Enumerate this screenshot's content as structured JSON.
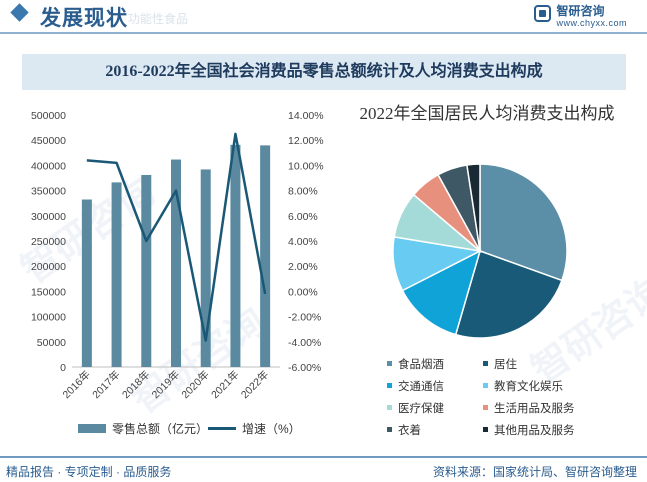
{
  "header": {
    "section_title": "发展现状",
    "faded_text": "功能性食品",
    "logo_name": "智研咨询",
    "logo_url": "www.chyxx.com"
  },
  "banner_title": "2016-2022年全国社会消费品零售总额统计及人均消费支出构成",
  "watermark_text": "智研咨询",
  "footer": {
    "left": "精品报告 · 专项定制 · 品质服务",
    "right": "资料来源：国家统计局、智研咨询整理"
  },
  "colors": {
    "bar": "#5b8aa0",
    "line": "#1a5876",
    "brand": "#2a5d8f"
  },
  "chart_data": [
    {
      "type": "bar",
      "categories": [
        "2016年",
        "2017年",
        "2018年",
        "2019年",
        "2020年",
        "2021年",
        "2022年"
      ],
      "series": [
        {
          "name": "零售总额（亿元）",
          "type": "bar",
          "axis": "left",
          "values": [
            332316,
            366262,
            380987,
            411649,
            391981,
            440823,
            439733
          ]
        },
        {
          "name": "增速（%）",
          "type": "line",
          "axis": "right",
          "values": [
            10.4,
            10.2,
            4.0,
            8.0,
            -3.9,
            12.5,
            -0.2
          ]
        }
      ],
      "left_axis": {
        "ylim": [
          0,
          500000
        ],
        "ticks": [
          "0",
          "50000",
          "100000",
          "150000",
          "200000",
          "250000",
          "300000",
          "350000",
          "400000",
          "450000",
          "500000"
        ]
      },
      "right_axis": {
        "ylim": [
          -6,
          14
        ],
        "ticks": [
          "-6.00%",
          "-4.00%",
          "-2.00%",
          "0.00%",
          "2.00%",
          "4.00%",
          "6.00%",
          "8.00%",
          "10.00%",
          "12.00%",
          "14.00%"
        ]
      },
      "legend_position": "bottom",
      "grid": false
    },
    {
      "type": "pie",
      "title": "2022年全国居民人均消费支出构成",
      "labels": [
        "食品烟酒",
        "居住",
        "交通通信",
        "教育文化娱乐",
        "医疗保健",
        "生活用品及服务",
        "衣着",
        "其他用品及服务"
      ],
      "values": [
        30.5,
        24.0,
        13.0,
        10.1,
        8.6,
        5.8,
        5.6,
        2.4
      ],
      "colors": [
        "#5b8fa8",
        "#185a78",
        "#10a3d8",
        "#67cbf2",
        "#a4dbd8",
        "#e8907e",
        "#3e5866",
        "#1a2a34"
      ],
      "legend_position": "bottom"
    }
  ]
}
